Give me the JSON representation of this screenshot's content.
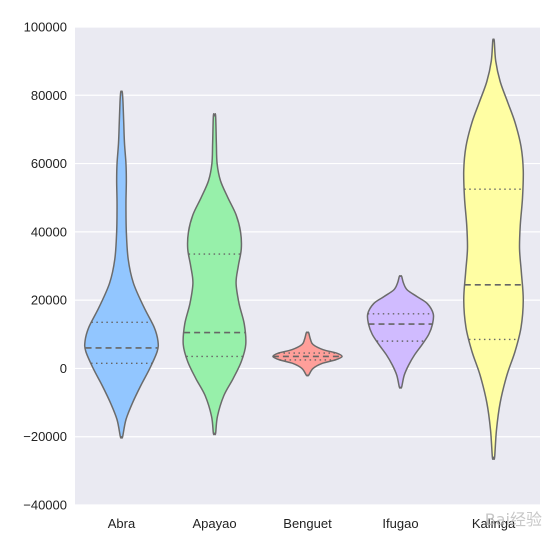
{
  "chart_data": {
    "type": "violin",
    "title": "",
    "xlabel": "",
    "ylabel": "",
    "ylim": [
      -40000,
      100000
    ],
    "yticks": [
      -40000,
      -20000,
      0,
      20000,
      40000,
      60000,
      80000,
      100000
    ],
    "ytick_labels": [
      "−40000",
      "−20000",
      "0",
      "20000",
      "40000",
      "60000",
      "80000",
      "100000"
    ],
    "grid": true,
    "categories": [
      "Abra",
      "Apayao",
      "Benguet",
      "Ifugao",
      "Kalinga"
    ],
    "colors": [
      "#92c6ff",
      "#97f0aa",
      "#ff9f9a",
      "#d0bbff",
      "#fffea3"
    ],
    "series": [
      {
        "name": "Abra",
        "min": -20000,
        "max": 81000,
        "q1": 1500,
        "median": 6000,
        "q3": 13500,
        "density": [
          [
            -20000,
            0.03
          ],
          [
            -15000,
            0.12
          ],
          [
            -10000,
            0.3
          ],
          [
            -5000,
            0.52
          ],
          [
            0,
            0.76
          ],
          [
            5000,
            0.96
          ],
          [
            8000,
            0.98
          ],
          [
            12000,
            0.88
          ],
          [
            18000,
            0.6
          ],
          [
            25000,
            0.32
          ],
          [
            32000,
            0.18
          ],
          [
            40000,
            0.13
          ],
          [
            48000,
            0.12
          ],
          [
            55000,
            0.13
          ],
          [
            60000,
            0.12
          ],
          [
            66000,
            0.08
          ],
          [
            72000,
            0.06
          ],
          [
            78000,
            0.04
          ],
          [
            81000,
            0.02
          ]
        ]
      },
      {
        "name": "Apayao",
        "min": -19000,
        "max": 74000,
        "q1": 3500,
        "median": 10500,
        "q3": 33500,
        "density": [
          [
            -19000,
            0.03
          ],
          [
            -14000,
            0.08
          ],
          [
            -8000,
            0.25
          ],
          [
            -3000,
            0.5
          ],
          [
            2000,
            0.72
          ],
          [
            7000,
            0.84
          ],
          [
            13000,
            0.8
          ],
          [
            19000,
            0.66
          ],
          [
            25000,
            0.58
          ],
          [
            30000,
            0.64
          ],
          [
            35000,
            0.72
          ],
          [
            40000,
            0.7
          ],
          [
            45000,
            0.58
          ],
          [
            50000,
            0.36
          ],
          [
            55000,
            0.16
          ],
          [
            60000,
            0.07
          ],
          [
            66000,
            0.05
          ],
          [
            74000,
            0.03
          ]
        ]
      },
      {
        "name": "Benguet",
        "min": -2000,
        "max": 10500,
        "q1": 2500,
        "median": 3500,
        "q3": 4500,
        "density": [
          [
            -2000,
            0.03
          ],
          [
            0,
            0.15
          ],
          [
            1500,
            0.4
          ],
          [
            2500,
            0.75
          ],
          [
            3500,
            0.93
          ],
          [
            4500,
            0.78
          ],
          [
            5500,
            0.42
          ],
          [
            7000,
            0.15
          ],
          [
            8500,
            0.08
          ],
          [
            10500,
            0.03
          ]
        ]
      },
      {
        "name": "Ifugao",
        "min": -5500,
        "max": 27000,
        "q1": 8000,
        "median": 13000,
        "q3": 16000,
        "density": [
          [
            -5500,
            0.03
          ],
          [
            -2000,
            0.1
          ],
          [
            1000,
            0.22
          ],
          [
            4000,
            0.38
          ],
          [
            7000,
            0.58
          ],
          [
            10000,
            0.76
          ],
          [
            13000,
            0.86
          ],
          [
            16000,
            0.88
          ],
          [
            19000,
            0.72
          ],
          [
            21000,
            0.45
          ],
          [
            23000,
            0.18
          ],
          [
            25000,
            0.08
          ],
          [
            27000,
            0.03
          ]
        ]
      },
      {
        "name": "Kalinga",
        "min": -26000,
        "max": 96000,
        "q1": 8500,
        "median": 24500,
        "q3": 52500,
        "density": [
          [
            -26000,
            0.03
          ],
          [
            -18000,
            0.08
          ],
          [
            -10000,
            0.18
          ],
          [
            -2000,
            0.36
          ],
          [
            5000,
            0.58
          ],
          [
            12000,
            0.74
          ],
          [
            20000,
            0.8
          ],
          [
            28000,
            0.75
          ],
          [
            35000,
            0.7
          ],
          [
            42000,
            0.72
          ],
          [
            50000,
            0.78
          ],
          [
            58000,
            0.8
          ],
          [
            65000,
            0.74
          ],
          [
            72000,
            0.58
          ],
          [
            78000,
            0.38
          ],
          [
            84000,
            0.18
          ],
          [
            90000,
            0.06
          ],
          [
            96000,
            0.02
          ]
        ]
      }
    ]
  },
  "watermark_text": "Bai经验"
}
